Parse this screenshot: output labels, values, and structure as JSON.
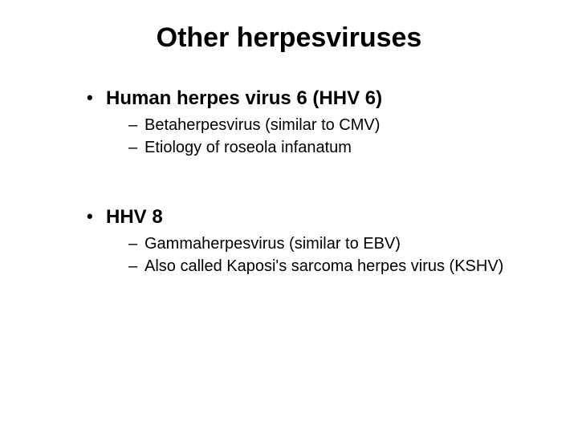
{
  "slide": {
    "title": "Other herpesviruses",
    "background_color": "#ffffff",
    "text_color": "#000000",
    "title_fontsize": 34,
    "h1_fontsize": 24,
    "h2_fontsize": 20,
    "font_family": "Arial",
    "sections": [
      {
        "heading": "Human herpes virus 6 (HHV 6)",
        "items": [
          "Betaherpesvirus (similar to CMV)",
          "Etiology of roseola infanatum"
        ]
      },
      {
        "heading": "HHV 8",
        "items": [
          "Gammaherpesvirus (similar to EBV)",
          "Also called Kaposi's sarcoma herpes virus (KSHV)"
        ]
      }
    ]
  }
}
